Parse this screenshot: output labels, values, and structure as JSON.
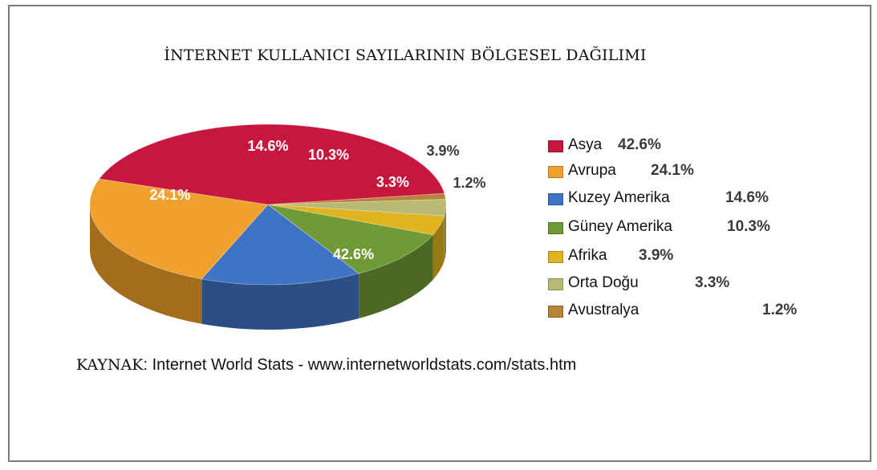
{
  "chart_data": {
    "type": "pie",
    "title": "İNTERNET KULLANICI SAYILARININ BÖLGESEL DAĞILIMI",
    "categories": [
      "Asya",
      "Avrupa",
      "Kuzey Amerika",
      "Güney Amerika",
      "Afrika",
      "Orta Doğu",
      "Avustralya"
    ],
    "values": [
      42.6,
      24.1,
      14.6,
      10.3,
      3.9,
      3.3,
      1.2
    ],
    "value_labels": [
      "42.6%",
      "24.1%",
      "14.6%",
      "10.3%",
      "3.9%",
      "3.3%",
      "1.2%"
    ],
    "colors": [
      "#c8173f",
      "#f0a02c",
      "#3f74c4",
      "#6f9a36",
      "#e0b41f",
      "#b8ba74",
      "#b8843a"
    ],
    "style": "3d-pie",
    "legend_position": "right"
  },
  "source": {
    "label": "KAYNAK",
    "text": ": Internet World Stats -  www.internetworldstats.com/stats.htm"
  }
}
